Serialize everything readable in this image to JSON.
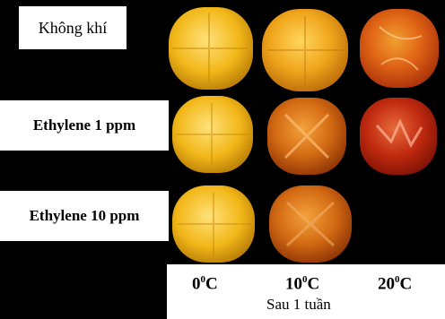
{
  "rows": [
    {
      "label": "Không khí"
    },
    {
      "label": "Ethylene 1 ppm"
    },
    {
      "label": "Ethylene 10 ppm"
    }
  ],
  "temperatures": [
    {
      "value": "0",
      "unit": "C",
      "sup": "0"
    },
    {
      "value": "10",
      "unit": "C",
      "sup": "0"
    },
    {
      "value": "20",
      "unit": "C",
      "sup": "0"
    }
  ],
  "caption": "Sau 1 tuần",
  "colors": {
    "background": "#000000",
    "fruit_yellow": "#f2b719",
    "fruit_orange": "#e28b16",
    "fruit_red": "#b82410"
  }
}
